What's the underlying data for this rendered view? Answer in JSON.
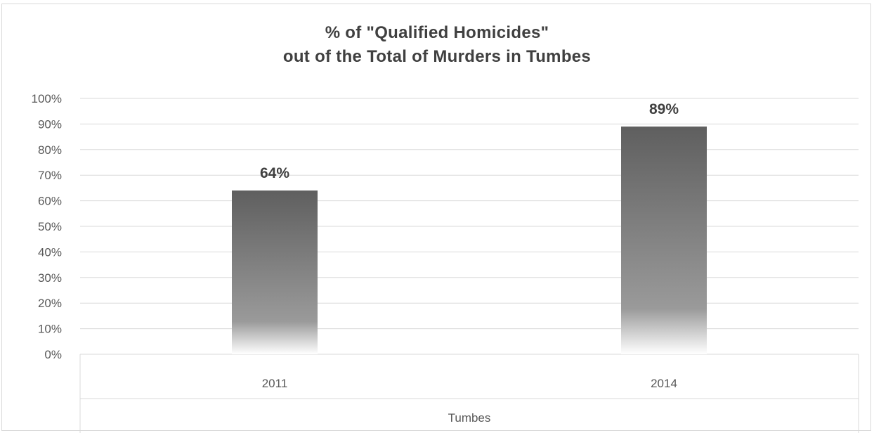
{
  "chart_data": {
    "type": "bar",
    "title_lines": [
      "% of \"Qualified Homicides\"",
      "out of the Total of Murders in Tumbes"
    ],
    "categories": [
      "2011",
      "2014"
    ],
    "group_label": "Tumbes",
    "values": [
      64,
      89
    ],
    "data_labels": [
      "64%",
      "89%"
    ],
    "y_ticks": [
      "0%",
      "10%",
      "20%",
      "30%",
      "40%",
      "50%",
      "60%",
      "70%",
      "80%",
      "90%",
      "100%"
    ],
    "ylim": [
      0,
      100
    ],
    "grid": true,
    "legend": "none",
    "bar_color": "#5f5f5f"
  }
}
